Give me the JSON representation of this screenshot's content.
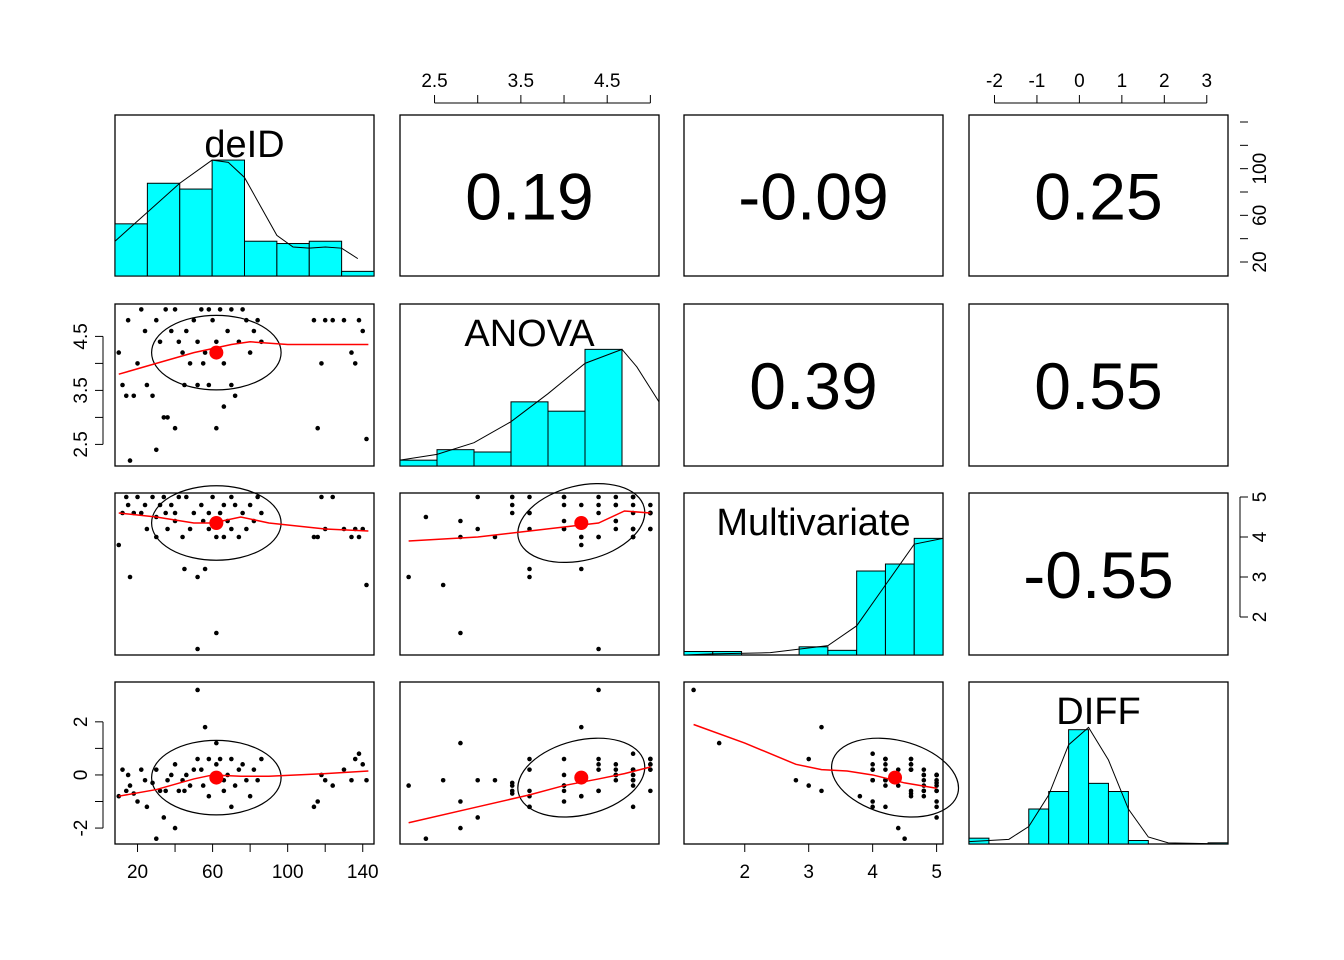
{
  "colors": {
    "histogram_fill": "#00FFFF",
    "smoother": "#FF0000",
    "centroid": "#FF0000",
    "points": "#000000",
    "frame": "#000000"
  },
  "chart_data": {
    "type": "scatter",
    "variables": [
      "deID",
      "ANOVA",
      "Multivariate",
      "DIFF"
    ],
    "ranges": {
      "deID": [
        8,
        146
      ],
      "ANOVA": [
        2.1,
        5.1
      ],
      "Multivariate": [
        1.05,
        5.1
      ],
      "DIFF": [
        -2.6,
        3.5
      ]
    },
    "ticks": {
      "deID": {
        "side": "bottom",
        "values": [
          20,
          40,
          60,
          80,
          100,
          120,
          140
        ],
        "labels": [
          "20",
          "",
          "60",
          "",
          "100",
          "",
          "140"
        ]
      },
      "ANOVA_top": {
        "side": "top",
        "values": [
          2.5,
          3.0,
          3.5,
          4.0,
          4.5,
          5.0
        ],
        "labels": [
          "2.5",
          "",
          "3.5",
          "",
          "4.5",
          ""
        ]
      },
      "ANOVA_left": {
        "side": "left",
        "values": [
          2.5,
          3.0,
          3.5,
          4.0,
          4.5
        ],
        "labels": [
          "2.5",
          "",
          "3.5",
          "",
          "4.5"
        ]
      },
      "Multivariate_bottom": {
        "side": "bottom",
        "values": [
          2,
          3,
          4,
          5
        ],
        "labels": [
          "2",
          "3",
          "4",
          "5"
        ]
      },
      "Multivariate_right": {
        "side": "right",
        "values": [
          2,
          3,
          4,
          5
        ],
        "labels": [
          "2",
          "3",
          "4",
          "5"
        ]
      },
      "DIFF_top": {
        "side": "top",
        "values": [
          -2,
          -1,
          0,
          1,
          2,
          3
        ],
        "labels": [
          "-2",
          "-1",
          "0",
          "1",
          "2",
          "3"
        ]
      },
      "DIFF_left": {
        "side": "left",
        "values": [
          -2,
          -1,
          0,
          1,
          2
        ],
        "labels": [
          "-2",
          "",
          "0",
          "",
          "2"
        ]
      },
      "deID_right": {
        "side": "right",
        "values": [
          20,
          40,
          60,
          80,
          100,
          120,
          140
        ],
        "labels": [
          "20",
          "",
          "60",
          "",
          "100",
          "",
          ""
        ]
      }
    },
    "correlations": [
      {
        "row": 0,
        "col": 1,
        "value": "0.19"
      },
      {
        "row": 0,
        "col": 2,
        "value": "-0.09"
      },
      {
        "row": 0,
        "col": 3,
        "value": "0.25"
      },
      {
        "row": 1,
        "col": 2,
        "value": "0.39"
      },
      {
        "row": 1,
        "col": 3,
        "value": "0.55"
      },
      {
        "row": 2,
        "col": 3,
        "value": "-0.55"
      }
    ],
    "histograms": {
      "deID": {
        "breaks": [
          0,
          20,
          40,
          60,
          80,
          100,
          120,
          140,
          160
        ],
        "heights": [
          0.45,
          0.8,
          0.75,
          1.0,
          0.3,
          0.28,
          0.3,
          0.04
        ],
        "density": [
          [
            0,
            0.3
          ],
          [
            20,
            0.55
          ],
          [
            40,
            0.8
          ],
          [
            60,
            1.0
          ],
          [
            70,
            0.98
          ],
          [
            80,
            0.85
          ],
          [
            90,
            0.6
          ],
          [
            100,
            0.35
          ],
          [
            110,
            0.25
          ],
          [
            120,
            0.24
          ],
          [
            130,
            0.25
          ],
          [
            140,
            0.24
          ],
          [
            150,
            0.15
          ]
        ]
      },
      "ANOVA": {
        "breaks": [
          2.0,
          2.5,
          3.0,
          3.5,
          4.0,
          4.5,
          5.0,
          5.5
        ],
        "heights": [
          0.05,
          0.14,
          0.12,
          0.55,
          0.47,
          1.0,
          0.0
        ],
        "density": [
          [
            2.0,
            0.05
          ],
          [
            2.5,
            0.1
          ],
          [
            3.0,
            0.2
          ],
          [
            3.5,
            0.38
          ],
          [
            4.0,
            0.62
          ],
          [
            4.5,
            0.88
          ],
          [
            5.0,
            1.0
          ],
          [
            5.2,
            0.85
          ],
          [
            5.5,
            0.55
          ]
        ]
      },
      "Multivariate": {
        "breaks": [
          0.5,
          1.0,
          1.5,
          2.0,
          2.5,
          3.0,
          3.5,
          4.0,
          4.5,
          5.0
        ],
        "heights": [
          0.03,
          0.03,
          0.0,
          0.0,
          0.07,
          0.04,
          0.72,
          0.78,
          1.0
        ],
        "density": [
          [
            0.5,
            0.0
          ],
          [
            1.0,
            0.01
          ],
          [
            2.0,
            0.02
          ],
          [
            3.0,
            0.08
          ],
          [
            3.5,
            0.25
          ],
          [
            4.0,
            0.6
          ],
          [
            4.5,
            0.95
          ],
          [
            5.0,
            1.0
          ],
          [
            5.2,
            0.6
          ]
        ]
      },
      "DIFF": {
        "breaks": [
          -3.0,
          -2.5,
          -2.0,
          -1.5,
          -1.0,
          -0.5,
          0.0,
          0.5,
          1.0,
          1.5,
          2.0,
          2.5,
          3.0,
          3.5
        ],
        "heights": [
          0.05,
          0.0,
          0.0,
          0.3,
          0.45,
          0.98,
          0.52,
          0.45,
          0.03,
          0.0,
          0.0,
          0.0,
          0.01
        ],
        "density": [
          [
            -3.0,
            0.02
          ],
          [
            -2.0,
            0.04
          ],
          [
            -1.5,
            0.15
          ],
          [
            -1.0,
            0.42
          ],
          [
            -0.5,
            0.85
          ],
          [
            0.0,
            1.0
          ],
          [
            0.5,
            0.72
          ],
          [
            1.0,
            0.3
          ],
          [
            1.5,
            0.06
          ],
          [
            2.0,
            0.01
          ],
          [
            3.5,
            0.0
          ]
        ]
      }
    },
    "points": [
      {
        "deID": 10,
        "ANOVA": 4.2,
        "Multivariate": 3.8,
        "DIFF": -0.8
      },
      {
        "deID": 12,
        "ANOVA": 3.6,
        "Multivariate": 4.6,
        "DIFF": 0.2
      },
      {
        "deID": 14,
        "ANOVA": 3.4,
        "Multivariate": 5.0,
        "DIFF": -0.6
      },
      {
        "deID": 15,
        "ANOVA": 4.8,
        "Multivariate": 4.8,
        "DIFF": 0.0
      },
      {
        "deID": 16,
        "ANOVA": 2.2,
        "Multivariate": 3.0,
        "DIFF": -0.4
      },
      {
        "deID": 18,
        "ANOVA": 3.4,
        "Multivariate": 4.6,
        "DIFF": -0.7
      },
      {
        "deID": 20,
        "ANOVA": 4.0,
        "Multivariate": 5.0,
        "DIFF": -1.0
      },
      {
        "deID": 22,
        "ANOVA": 5.0,
        "Multivariate": 4.6,
        "DIFF": 0.2
      },
      {
        "deID": 24,
        "ANOVA": 4.6,
        "Multivariate": 4.8,
        "DIFF": -0.2
      },
      {
        "deID": 25,
        "ANOVA": 3.6,
        "Multivariate": 4.2,
        "DIFF": -1.2
      },
      {
        "deID": 28,
        "ANOVA": 3.4,
        "Multivariate": 5.0,
        "DIFF": -0.3
      },
      {
        "deID": 30,
        "ANOVA": 2.4,
        "Multivariate": 4.5,
        "DIFF": -2.4
      },
      {
        "deID": 30,
        "ANOVA": 4.8,
        "Multivariate": 4.0,
        "DIFF": 0.2
      },
      {
        "deID": 32,
        "ANOVA": 4.4,
        "Multivariate": 4.8,
        "DIFF": -0.6
      },
      {
        "deID": 34,
        "ANOVA": 3.0,
        "Multivariate": 5.0,
        "DIFF": -1.6
      },
      {
        "deID": 35,
        "ANOVA": 5.0,
        "Multivariate": 4.6,
        "DIFF": -0.6
      },
      {
        "deID": 36,
        "ANOVA": 3.0,
        "Multivariate": 4.2,
        "DIFF": -0.2
      },
      {
        "deID": 38,
        "ANOVA": 4.6,
        "Multivariate": 4.8,
        "DIFF": 0.0
      },
      {
        "deID": 40,
        "ANOVA": 2.8,
        "Multivariate": 4.4,
        "DIFF": -2.0
      },
      {
        "deID": 40,
        "ANOVA": 5.0,
        "Multivariate": 4.6,
        "DIFF": 0.4
      },
      {
        "deID": 42,
        "ANOVA": 4.4,
        "Multivariate": 5.0,
        "DIFF": -0.6
      },
      {
        "deID": 44,
        "ANOVA": 4.2,
        "Multivariate": 4.0,
        "DIFF": -0.2
      },
      {
        "deID": 45,
        "ANOVA": 3.6,
        "Multivariate": 3.2,
        "DIFF": -0.6
      },
      {
        "deID": 46,
        "ANOVA": 4.6,
        "Multivariate": 5.0,
        "DIFF": 0.0
      },
      {
        "deID": 48,
        "ANOVA": 4.0,
        "Multivariate": 4.2,
        "DIFF": -0.4
      },
      {
        "deID": 50,
        "ANOVA": 4.8,
        "Multivariate": 4.6,
        "DIFF": 0.2
      },
      {
        "deID": 52,
        "ANOVA": 4.4,
        "Multivariate": 1.2,
        "DIFF": 3.2
      },
      {
        "deID": 52,
        "ANOVA": 3.6,
        "Multivariate": 3.0,
        "DIFF": 0.6
      },
      {
        "deID": 54,
        "ANOVA": 5.0,
        "Multivariate": 4.8,
        "DIFF": 0.2
      },
      {
        "deID": 55,
        "ANOVA": 4.0,
        "Multivariate": 4.4,
        "DIFF": -0.4
      },
      {
        "deID": 56,
        "ANOVA": 4.2,
        "Multivariate": 3.2,
        "DIFF": 1.8
      },
      {
        "deID": 58,
        "ANOVA": 3.6,
        "Multivariate": 4.6,
        "DIFF": -0.8
      },
      {
        "deID": 58,
        "ANOVA": 5.0,
        "Multivariate": 4.2,
        "DIFF": 0.6
      },
      {
        "deID": 60,
        "ANOVA": 4.8,
        "Multivariate": 5.0,
        "DIFF": 0.0
      },
      {
        "deID": 62,
        "ANOVA": 2.8,
        "Multivariate": 1.6,
        "DIFF": 1.2
      },
      {
        "deID": 62,
        "ANOVA": 4.4,
        "Multivariate": 4.0,
        "DIFF": 0.4
      },
      {
        "deID": 64,
        "ANOVA": 5.0,
        "Multivariate": 4.6,
        "DIFF": 0.6
      },
      {
        "deID": 66,
        "ANOVA": 4.0,
        "Multivariate": 4.8,
        "DIFF": -0.6
      },
      {
        "deID": 66,
        "ANOVA": 3.2,
        "Multivariate": 4.0,
        "DIFF": -0.2
      },
      {
        "deID": 68,
        "ANOVA": 4.6,
        "Multivariate": 4.4,
        "DIFF": 0.0
      },
      {
        "deID": 70,
        "ANOVA": 3.6,
        "Multivariate": 5.0,
        "DIFF": -1.2
      },
      {
        "deID": 70,
        "ANOVA": 5.0,
        "Multivariate": 4.2,
        "DIFF": 0.6
      },
      {
        "deID": 72,
        "ANOVA": 3.4,
        "Multivariate": 4.8,
        "DIFF": -0.4
      },
      {
        "deID": 74,
        "ANOVA": 4.4,
        "Multivariate": 4.0,
        "DIFF": 0.2
      },
      {
        "deID": 76,
        "ANOVA": 5.0,
        "Multivariate": 4.6,
        "DIFF": 0.4
      },
      {
        "deID": 78,
        "ANOVA": 4.8,
        "Multivariate": 4.2,
        "DIFF": -0.2
      },
      {
        "deID": 80,
        "ANOVA": 4.2,
        "Multivariate": 4.8,
        "DIFF": -0.8
      },
      {
        "deID": 82,
        "ANOVA": 4.6,
        "Multivariate": 4.4,
        "DIFF": 0.2
      },
      {
        "deID": 84,
        "ANOVA": 4.8,
        "Multivariate": 5.0,
        "DIFF": -0.2
      },
      {
        "deID": 86,
        "ANOVA": 4.4,
        "Multivariate": 4.6,
        "DIFF": 0.6
      },
      {
        "deID": 114,
        "ANOVA": 4.8,
        "Multivariate": 4.0,
        "DIFF": -1.2
      },
      {
        "deID": 116,
        "ANOVA": 2.8,
        "Multivariate": 4.0,
        "DIFF": -1.0
      },
      {
        "deID": 118,
        "ANOVA": 4.0,
        "Multivariate": 5.0,
        "DIFF": 0.0
      },
      {
        "deID": 120,
        "ANOVA": 4.8,
        "Multivariate": 4.2,
        "DIFF": -0.2
      },
      {
        "deID": 124,
        "ANOVA": 4.8,
        "Multivariate": 5.0,
        "DIFF": -0.4
      },
      {
        "deID": 130,
        "ANOVA": 4.8,
        "Multivariate": 4.2,
        "DIFF": 0.2
      },
      {
        "deID": 134,
        "ANOVA": 4.2,
        "Multivariate": 4.0,
        "DIFF": -0.2
      },
      {
        "deID": 136,
        "ANOVA": 4.0,
        "Multivariate": 4.2,
        "DIFF": 0.6
      },
      {
        "deID": 138,
        "ANOVA": 4.8,
        "Multivariate": 4.0,
        "DIFF": 0.8
      },
      {
        "deID": 140,
        "ANOVA": 4.6,
        "Multivariate": 4.2,
        "DIFF": 0.4
      },
      {
        "deID": 142,
        "ANOVA": 2.6,
        "Multivariate": 2.8,
        "DIFF": -0.2
      }
    ],
    "smoothers": {
      "ANOVA~deID": [
        [
          10,
          3.8
        ],
        [
          30,
          4.0
        ],
        [
          50,
          4.2
        ],
        [
          70,
          4.35
        ],
        [
          80,
          4.4
        ],
        [
          100,
          4.35
        ],
        [
          120,
          4.35
        ],
        [
          143,
          4.35
        ]
      ],
      "Multivariate~deID": [
        [
          10,
          4.6
        ],
        [
          30,
          4.5
        ],
        [
          50,
          4.35
        ],
        [
          60,
          4.35
        ],
        [
          75,
          4.5
        ],
        [
          90,
          4.35
        ],
        [
          120,
          4.2
        ],
        [
          143,
          4.15
        ]
      ],
      "DIFF~deID": [
        [
          10,
          -0.8
        ],
        [
          30,
          -0.55
        ],
        [
          50,
          -0.15
        ],
        [
          60,
          0.0
        ],
        [
          75,
          -0.05
        ],
        [
          90,
          -0.05
        ],
        [
          120,
          0.05
        ],
        [
          143,
          0.15
        ]
      ],
      "Multivariate~ANOVA": [
        [
          2.2,
          3.9
        ],
        [
          3.0,
          4.0
        ],
        [
          3.6,
          4.15
        ],
        [
          4.0,
          4.25
        ],
        [
          4.4,
          4.35
        ],
        [
          4.7,
          4.65
        ],
        [
          5.0,
          4.6
        ]
      ],
      "DIFF~ANOVA": [
        [
          2.2,
          -1.8
        ],
        [
          3.0,
          -1.2
        ],
        [
          3.6,
          -0.75
        ],
        [
          4.0,
          -0.4
        ],
        [
          4.4,
          -0.15
        ],
        [
          4.7,
          0.05
        ],
        [
          5.0,
          0.3
        ]
      ],
      "DIFF~Multivariate": [
        [
          1.2,
          1.9
        ],
        [
          2.0,
          1.2
        ],
        [
          2.8,
          0.4
        ],
        [
          3.2,
          0.2
        ],
        [
          3.6,
          0.15
        ],
        [
          4.0,
          0.0
        ],
        [
          4.5,
          -0.3
        ],
        [
          5.0,
          -0.5
        ]
      ]
    },
    "centroids": {
      "deID": 62,
      "ANOVA": 4.2,
      "Multivariate": 4.35,
      "DIFF": -0.1
    },
    "grid": false,
    "legend": "none"
  }
}
